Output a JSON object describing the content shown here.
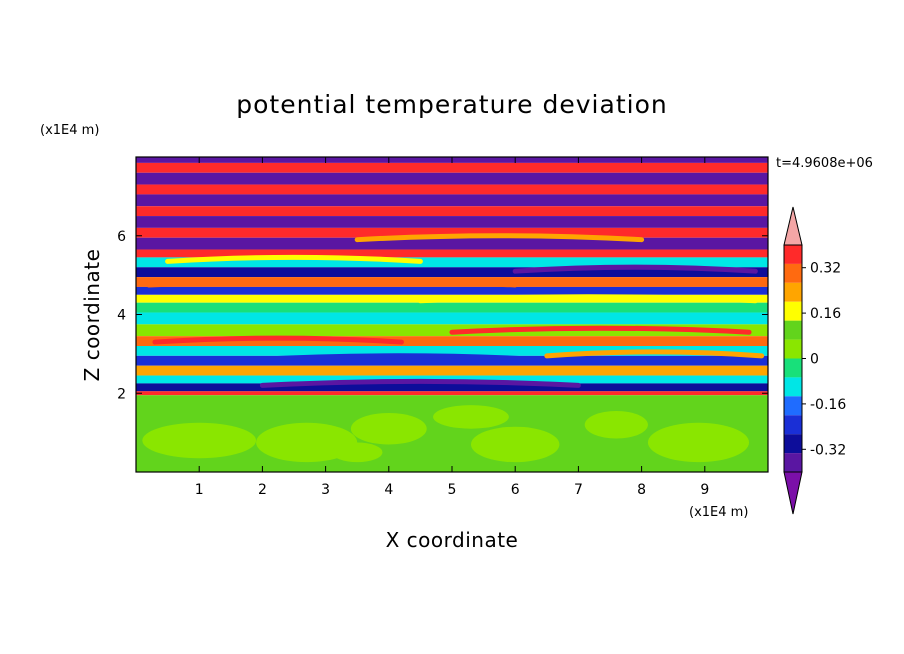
{
  "chart_data": {
    "type": "heatmap",
    "title": "potential temperature deviation",
    "xlabel": "X coordinate",
    "ylabel": "Z coordinate",
    "x_unit": "(x1E4 m)",
    "y_unit": "(x1E4 m)",
    "time_label": "t=4.9608e+06",
    "xlim": [
      0,
      10
    ],
    "ylim": [
      0,
      8
    ],
    "x_ticks": [
      "1",
      "2",
      "3",
      "4",
      "5",
      "6",
      "7",
      "8",
      "9"
    ],
    "y_ticks": [
      "2",
      "4",
      "6"
    ],
    "colorbar": {
      "levels": [
        -0.48,
        -0.4,
        -0.32,
        -0.24,
        -0.16,
        -0.08,
        0,
        0.08,
        0.16,
        0.24,
        0.32,
        0.4,
        0.48
      ],
      "colors": [
        "#7b0fa8",
        "#5a16a2",
        "#0d0d9a",
        "#1a2fd6",
        "#1f6cff",
        "#00e6e6",
        "#18e07a",
        "#8ae600",
        "#62d41c",
        "#ffff00",
        "#ffa500",
        "#ff6a10",
        "#ff2a2a",
        "#f4a6a6"
      ],
      "labels": [
        "0.32",
        "0.16",
        "0",
        "-0.16",
        "-0.32"
      ],
      "label_values": [
        0.32,
        0.16,
        0,
        -0.16,
        -0.32
      ]
    },
    "bands": [
      {
        "z": [
          7.85,
          8.0
        ],
        "value": -0.45
      },
      {
        "z": [
          7.6,
          7.85
        ],
        "value": 0.45
      },
      {
        "z": [
          7.3,
          7.6
        ],
        "value": -0.45
      },
      {
        "z": [
          7.05,
          7.3
        ],
        "value": 0.45
      },
      {
        "z": [
          6.75,
          7.05
        ],
        "value": -0.45
      },
      {
        "z": [
          6.5,
          6.75
        ],
        "value": 0.45
      },
      {
        "z": [
          6.2,
          6.5
        ],
        "value": -0.45
      },
      {
        "z": [
          5.95,
          6.2
        ],
        "value": 0.45
      },
      {
        "z": [
          5.65,
          5.95
        ],
        "value": -0.45
      },
      {
        "z": [
          5.45,
          5.65
        ],
        "value": 0.45
      },
      {
        "z": [
          5.2,
          5.45
        ],
        "value": -0.1
      },
      {
        "z": [
          4.95,
          5.2
        ],
        "value": -0.4
      },
      {
        "z": [
          4.7,
          4.95
        ],
        "value": 0.36
      },
      {
        "z": [
          4.5,
          4.7
        ],
        "value": -0.3
      },
      {
        "z": [
          4.3,
          4.5
        ],
        "value": 0.2
      },
      {
        "z": [
          4.05,
          4.3
        ],
        "value": -0.04
      },
      {
        "z": [
          3.75,
          4.05
        ],
        "value": -0.1
      },
      {
        "z": [
          3.45,
          3.75
        ],
        "value": 0.05
      },
      {
        "z": [
          3.2,
          3.45
        ],
        "value": 0.36
      },
      {
        "z": [
          2.95,
          3.2
        ],
        "value": -0.1
      },
      {
        "z": [
          2.7,
          2.95
        ],
        "value": -0.25
      },
      {
        "z": [
          2.45,
          2.7
        ],
        "value": 0.3
      },
      {
        "z": [
          2.25,
          2.45
        ],
        "value": -0.1
      },
      {
        "z": [
          2.05,
          2.25
        ],
        "value": -0.4
      },
      {
        "z": [
          1.95,
          2.05
        ],
        "value": 0.45
      },
      {
        "z": [
          0.0,
          1.95
        ],
        "value": 0.1
      }
    ],
    "streaks": [
      {
        "x": [
          0.2,
          6.0
        ],
        "z": 4.75,
        "value": 0.36
      },
      {
        "x": [
          4.5,
          9.8
        ],
        "z": 4.35,
        "value": 0.2
      },
      {
        "x": [
          0.3,
          4.2
        ],
        "z": 3.3,
        "value": 0.4
      },
      {
        "x": [
          5.0,
          9.7
        ],
        "z": 3.55,
        "value": 0.45
      },
      {
        "x": [
          1.8,
          6.5
        ],
        "z": 2.85,
        "value": -0.3
      },
      {
        "x": [
          6.5,
          9.9
        ],
        "z": 2.95,
        "value": 0.3
      },
      {
        "x": [
          2.0,
          7.0
        ],
        "z": 2.2,
        "value": -0.45
      },
      {
        "x": [
          0.5,
          4.5
        ],
        "z": 5.35,
        "value": 0.2
      },
      {
        "x": [
          6.0,
          9.8
        ],
        "z": 5.1,
        "value": -0.45
      },
      {
        "x": [
          3.5,
          8.0
        ],
        "z": 5.9,
        "value": 0.3
      }
    ],
    "blobs": [
      {
        "x": 1.0,
        "z": 0.8,
        "rx": 0.9,
        "rz": 0.45,
        "value": 0.02
      },
      {
        "x": 2.7,
        "z": 0.75,
        "rx": 0.8,
        "rz": 0.5,
        "value": 0.02
      },
      {
        "x": 4.0,
        "z": 1.1,
        "rx": 0.6,
        "rz": 0.4,
        "value": 0.02
      },
      {
        "x": 6.0,
        "z": 0.7,
        "rx": 0.7,
        "rz": 0.45,
        "value": 0.02
      },
      {
        "x": 8.9,
        "z": 0.75,
        "rx": 0.8,
        "rz": 0.5,
        "value": 0.02
      },
      {
        "x": 5.3,
        "z": 1.4,
        "rx": 0.6,
        "rz": 0.3,
        "value": 0.02
      },
      {
        "x": 7.6,
        "z": 1.2,
        "rx": 0.5,
        "rz": 0.35,
        "value": 0.02
      },
      {
        "x": 3.5,
        "z": 0.5,
        "rx": 0.4,
        "rz": 0.25,
        "value": 0.02
      }
    ]
  }
}
